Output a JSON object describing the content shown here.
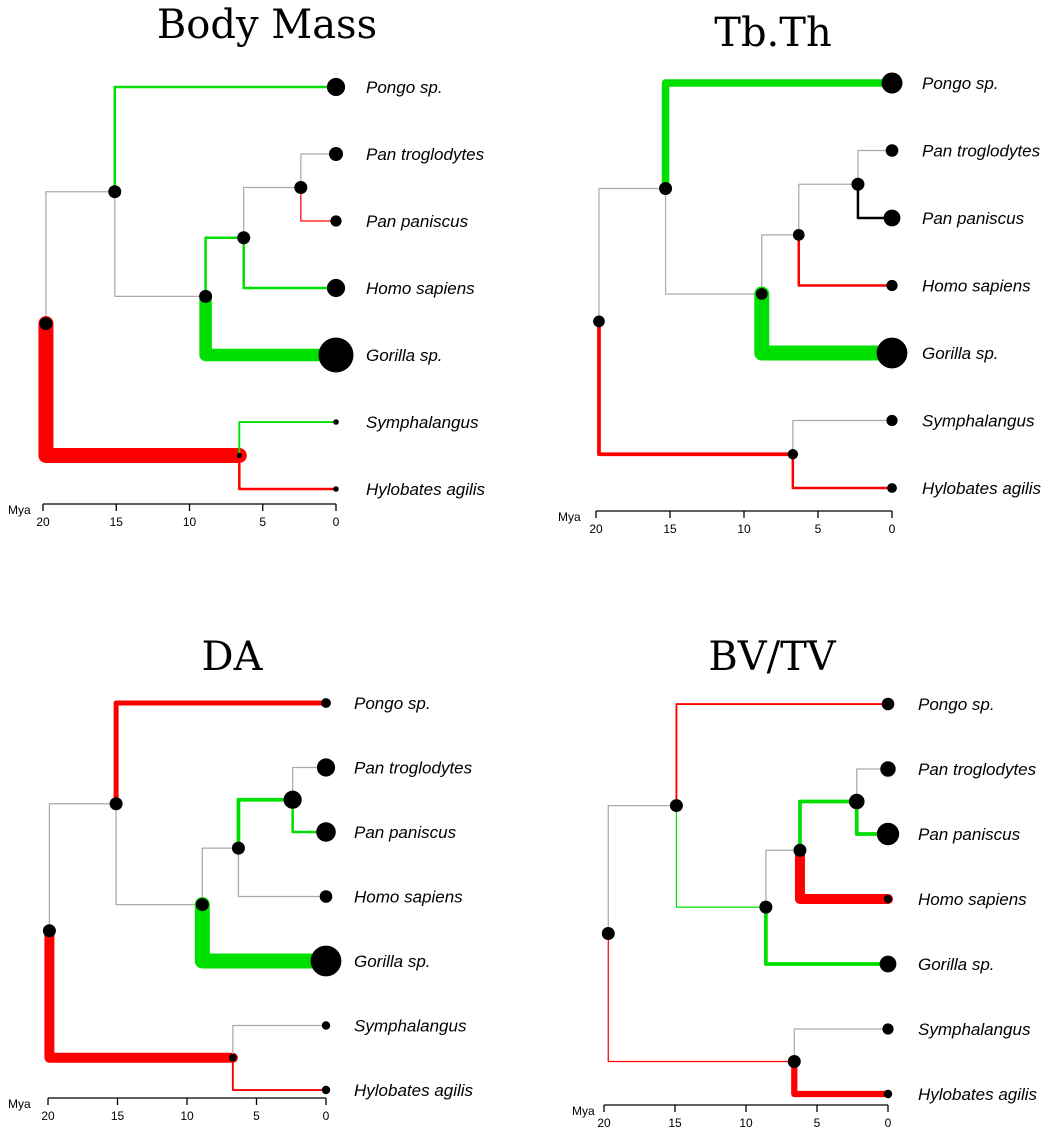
{
  "chart_data": [
    {
      "type": "phylogenetic-tree",
      "title": "Body Mass",
      "axis": {
        "unit": "Mya",
        "ticks": [
          20,
          15,
          10,
          5,
          0
        ]
      },
      "tips": [
        "Pongo sp.",
        "Pan troglodytes",
        "Pan paniscus",
        "Homo sapiens",
        "Gorilla sp.",
        "Symphalangus",
        "Hylobates agilis"
      ],
      "node_ages_mya": {
        "root": 19.8,
        "hominid": 15.1,
        "african_ape": 8.9,
        "homo_pan": 6.3,
        "pan": 2.4,
        "hylobatid": 6.6
      },
      "node_sizes": {
        "root": 1.0,
        "hominid": 1.0,
        "african_ape": 1.0,
        "homo_pan": 1.0,
        "pan": 1.0,
        "hylobatid": 0.4
      },
      "tip_sizes": [
        1.3,
        1.0,
        0.8,
        1.3,
        2.5,
        0.4,
        0.4
      ],
      "branches": [
        {
          "to": "hominid",
          "color": "#aaaaaa",
          "weight": 1
        },
        {
          "to": "hylobatid",
          "color": "#ff0000",
          "weight": 12
        },
        {
          "to": "Pongo sp.",
          "color": "#00e000",
          "weight": 2
        },
        {
          "to": "african_ape",
          "color": "#aaaaaa",
          "weight": 1
        },
        {
          "to": "homo_pan",
          "color": "#00e000",
          "weight": 2
        },
        {
          "to": "Gorilla sp.",
          "color": "#00e000",
          "weight": 10
        },
        {
          "to": "pan",
          "color": "#aaaaaa",
          "weight": 1
        },
        {
          "to": "Homo sapiens",
          "color": "#00e000",
          "weight": 2
        },
        {
          "to": "Pan troglodytes",
          "color": "#aaaaaa",
          "weight": 1
        },
        {
          "to": "Pan paniscus",
          "color": "#ff0000",
          "weight": 1
        },
        {
          "to": "Symphalangus",
          "color": "#00e000",
          "weight": 1.5
        },
        {
          "to": "Hylobates agilis",
          "color": "#ff0000",
          "weight": 2
        }
      ]
    },
    {
      "type": "phylogenetic-tree",
      "title": "Tb.Th",
      "axis": {
        "unit": "Mya",
        "ticks": [
          20,
          15,
          10,
          5,
          0
        ]
      },
      "tips": [
        "Pongo sp.",
        "Pan troglodytes",
        "Pan paniscus",
        "Homo sapiens",
        "Gorilla sp.",
        "Symphalangus",
        "Hylobates agilis"
      ],
      "node_ages_mya": {
        "root": 19.8,
        "hominid": 15.3,
        "african_ape": 8.8,
        "homo_pan": 6.3,
        "pan": 2.3,
        "hylobatid": 6.7
      },
      "node_sizes": {
        "root": 0.9,
        "hominid": 1.0,
        "african_ape": 0.9,
        "homo_pan": 0.9,
        "pan": 1.0,
        "hylobatid": 0.8
      },
      "tip_sizes": [
        1.5,
        0.9,
        1.2,
        0.8,
        2.2,
        0.8,
        0.7
      ],
      "branches": [
        {
          "to": "hominid",
          "color": "#aaaaaa",
          "weight": 1
        },
        {
          "to": "hylobatid",
          "color": "#ff0000",
          "weight": 3
        },
        {
          "to": "Pongo sp.",
          "color": "#00e000",
          "weight": 6
        },
        {
          "to": "african_ape",
          "color": "#aaaaaa",
          "weight": 1
        },
        {
          "to": "homo_pan",
          "color": "#aaaaaa",
          "weight": 1
        },
        {
          "to": "Gorilla sp.",
          "color": "#00e000",
          "weight": 12
        },
        {
          "to": "pan",
          "color": "#aaaaaa",
          "weight": 1
        },
        {
          "to": "Homo sapiens",
          "color": "#ff0000",
          "weight": 2
        },
        {
          "to": "Pan troglodytes",
          "color": "#aaaaaa",
          "weight": 1
        },
        {
          "to": "Pan paniscus",
          "color": "#000000",
          "weight": 2
        },
        {
          "to": "Symphalangus",
          "color": "#aaaaaa",
          "weight": 1
        },
        {
          "to": "Hylobates agilis",
          "color": "#ff0000",
          "weight": 2
        }
      ]
    },
    {
      "type": "phylogenetic-tree",
      "title": "DA",
      "axis": {
        "unit": "Mya",
        "ticks": [
          20,
          15,
          10,
          5,
          0
        ]
      },
      "tips": [
        "Pongo sp.",
        "Pan troglodytes",
        "Pan paniscus",
        "Homo sapiens",
        "Gorilla sp.",
        "Symphalangus",
        "Hylobates agilis"
      ],
      "node_ages_mya": {
        "root": 19.9,
        "hominid": 15.1,
        "african_ape": 8.9,
        "homo_pan": 6.3,
        "pan": 2.4,
        "hylobatid": 6.7
      },
      "node_sizes": {
        "root": 1.0,
        "hominid": 1.0,
        "african_ape": 1.0,
        "homo_pan": 1.0,
        "pan": 1.4,
        "hylobatid": 0.6
      },
      "tip_sizes": [
        0.7,
        1.3,
        1.4,
        0.9,
        2.2,
        0.6,
        0.6
      ],
      "branches": [
        {
          "to": "hominid",
          "color": "#aaaaaa",
          "weight": 1
        },
        {
          "to": "hylobatid",
          "color": "#ff0000",
          "weight": 8
        },
        {
          "to": "Pongo sp.",
          "color": "#ff0000",
          "weight": 4
        },
        {
          "to": "african_ape",
          "color": "#aaaaaa",
          "weight": 1
        },
        {
          "to": "homo_pan",
          "color": "#aaaaaa",
          "weight": 1
        },
        {
          "to": "Gorilla sp.",
          "color": "#00e000",
          "weight": 12
        },
        {
          "to": "pan",
          "color": "#00e000",
          "weight": 3
        },
        {
          "to": "Homo sapiens",
          "color": "#aaaaaa",
          "weight": 1
        },
        {
          "to": "Pan troglodytes",
          "color": "#aaaaaa",
          "weight": 1
        },
        {
          "to": "Pan paniscus",
          "color": "#00e000",
          "weight": 2
        },
        {
          "to": "Symphalangus",
          "color": "#aaaaaa",
          "weight": 1
        },
        {
          "to": "Hylobates agilis",
          "color": "#ff0000",
          "weight": 1.5
        }
      ]
    },
    {
      "type": "phylogenetic-tree",
      "title": "BV/TV",
      "axis": {
        "unit": "Mya",
        "ticks": [
          20,
          15,
          10,
          5,
          0
        ]
      },
      "tips": [
        "Pongo sp.",
        "Pan troglodytes",
        "Pan paniscus",
        "Homo sapiens",
        "Gorilla sp.",
        "Symphalangus",
        "Hylobates agilis"
      ],
      "node_ages_mya": {
        "root": 19.7,
        "hominid": 14.9,
        "african_ape": 8.6,
        "homo_pan": 6.2,
        "pan": 2.2,
        "hylobatid": 6.6
      },
      "node_sizes": {
        "root": 1.0,
        "hominid": 1.0,
        "african_ape": 1.0,
        "homo_pan": 1.0,
        "pan": 1.2,
        "hylobatid": 1.0
      },
      "tip_sizes": [
        0.9,
        1.1,
        1.6,
        0.6,
        1.2,
        0.8,
        0.6
      ],
      "branches": [
        {
          "to": "hominid",
          "color": "#aaaaaa",
          "weight": 1
        },
        {
          "to": "hylobatid",
          "color": "#ff0000",
          "weight": 1
        },
        {
          "to": "Pongo sp.",
          "color": "#ff0000",
          "weight": 1.5
        },
        {
          "to": "african_ape",
          "color": "#00e000",
          "weight": 1
        },
        {
          "to": "homo_pan",
          "color": "#aaaaaa",
          "weight": 1
        },
        {
          "to": "Gorilla sp.",
          "color": "#00e000",
          "weight": 3
        },
        {
          "to": "pan",
          "color": "#00e000",
          "weight": 3
        },
        {
          "to": "Homo sapiens",
          "color": "#ff0000",
          "weight": 8
        },
        {
          "to": "Pan troglodytes",
          "color": "#aaaaaa",
          "weight": 1
        },
        {
          "to": "Pan paniscus",
          "color": "#00e000",
          "weight": 3
        },
        {
          "to": "Symphalangus",
          "color": "#aaaaaa",
          "weight": 1
        },
        {
          "to": "Hylobates agilis",
          "color": "#ff0000",
          "weight": 5
        }
      ]
    }
  ]
}
